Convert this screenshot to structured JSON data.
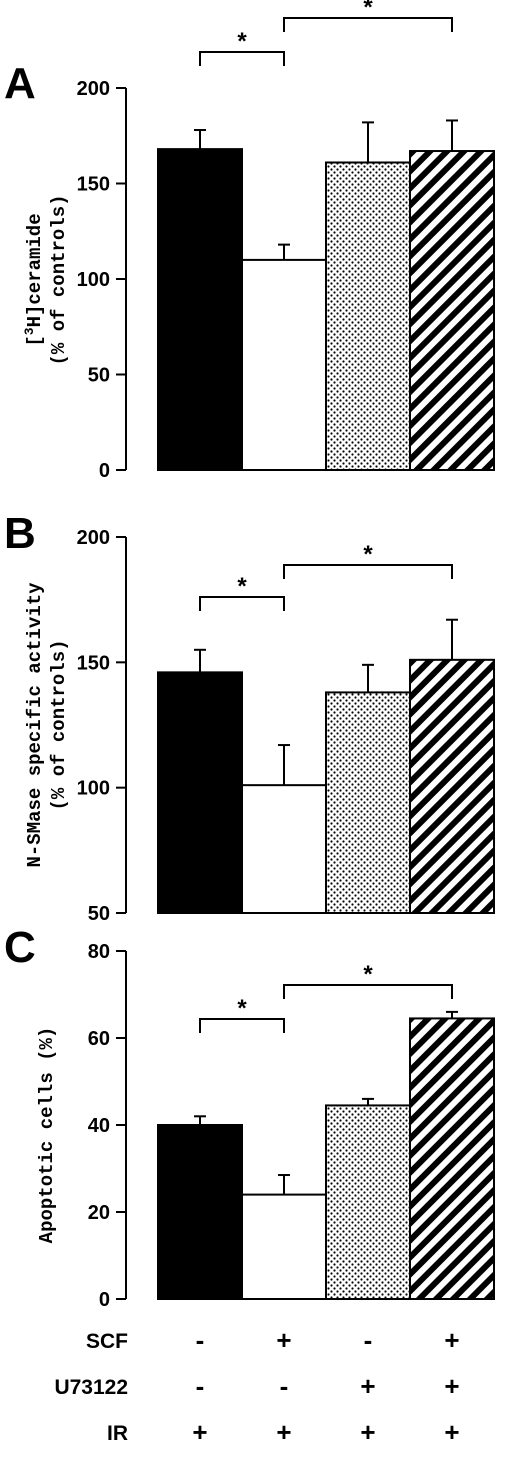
{
  "chart_data": [
    {
      "type": "bar",
      "panel": "A",
      "ylabel_line1": "[3H]ceramide",
      "ylabel_line2": "(% of controls)",
      "ylim": [
        0,
        200
      ],
      "yticks": [
        "0",
        "50",
        "100",
        "150",
        "200"
      ],
      "values": [
        168,
        110,
        161,
        167
      ],
      "errors": [
        10,
        8,
        21,
        16
      ],
      "significance": [
        "*",
        "*"
      ]
    },
    {
      "type": "bar",
      "panel": "B",
      "ylabel_line1": "N-SMase specific activity",
      "ylabel_line2": "(% of controls)",
      "ylim": [
        50,
        200
      ],
      "yticks": [
        "50",
        "100",
        "150",
        "200"
      ],
      "values": [
        146,
        101,
        138,
        151
      ],
      "errors": [
        9,
        16,
        11,
        16
      ],
      "significance": [
        "*",
        "*"
      ]
    },
    {
      "type": "bar",
      "panel": "C",
      "ylabel_line1": "Apoptotic cells (%)",
      "ylabel_line2": "",
      "ylim": [
        0,
        80
      ],
      "yticks": [
        "0",
        "20",
        "40",
        "60",
        "80"
      ],
      "values": [
        40,
        24,
        44.5,
        64.5
      ],
      "errors": [
        2,
        4.5,
        1.5,
        1.5
      ],
      "significance": [
        "*",
        "*"
      ]
    }
  ],
  "bar_styles": [
    "solid",
    "open",
    "dotted",
    "hatched"
  ],
  "conditions": {
    "rows": [
      {
        "label": "SCF",
        "signs": [
          "-",
          "+",
          "-",
          "+"
        ]
      },
      {
        "label": "U73122",
        "signs": [
          "-",
          "-",
          "+",
          "+"
        ]
      },
      {
        "label": "IR",
        "signs": [
          "+",
          "+",
          "+",
          "+"
        ]
      }
    ]
  }
}
